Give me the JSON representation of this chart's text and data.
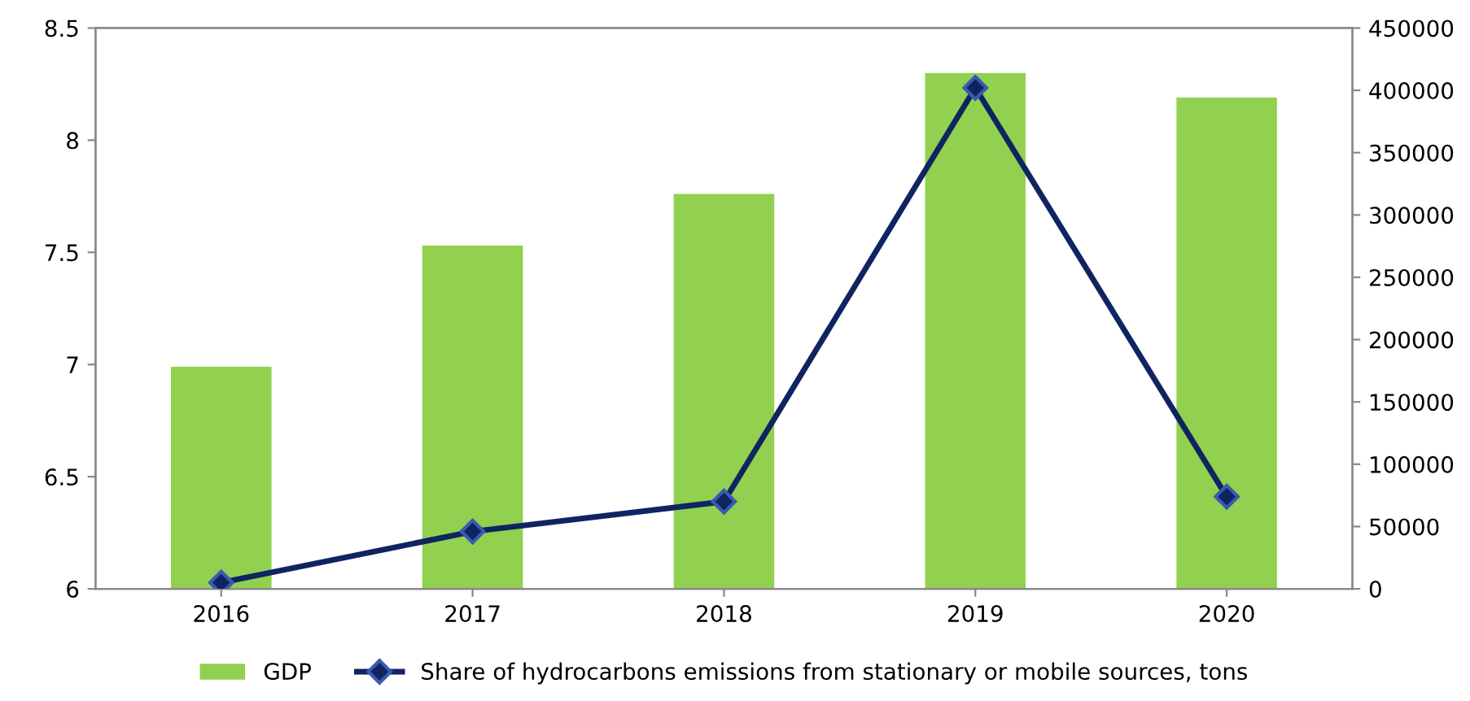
{
  "chart_data": {
    "type": "bar",
    "categories": [
      "2016",
      "2017",
      "2018",
      "2019",
      "2020"
    ],
    "series": [
      {
        "name": "GDP",
        "color": "#92d050",
        "values": [
          6.99,
          7.53,
          7.76,
          8.3,
          8.19
        ]
      },
      {
        "name": "Share of hydrocarbons emissions from stationary or mobile sources, tons",
        "type": "line",
        "axis": "y2",
        "color": "#0f2461",
        "marker": "diamond",
        "values": [
          5000,
          46000,
          70000,
          402000,
          74000
        ]
      }
    ],
    "ylim": [
      6,
      8.5
    ],
    "yticks": [
      6,
      6.5,
      7,
      7.5,
      8,
      8.5
    ],
    "y2lim": [
      0,
      450000
    ],
    "y2ticks": [
      0,
      50000,
      100000,
      150000,
      200000,
      250000,
      300000,
      350000,
      400000,
      450000
    ],
    "legend": "bottom",
    "grid": false
  }
}
